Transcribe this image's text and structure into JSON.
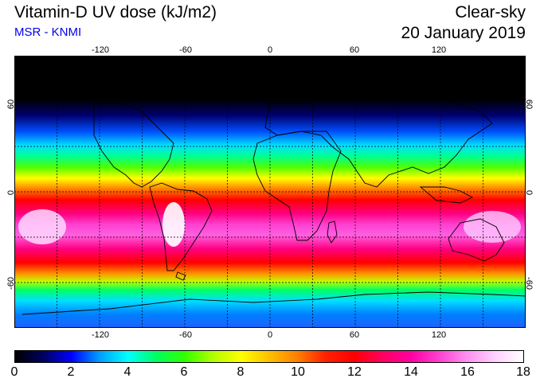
{
  "header": {
    "title": "Vitamin-D UV dose (kJ/m2)",
    "source": "MSR - KNMI",
    "condition": "Clear-sky",
    "date": "20 January 2019"
  },
  "map": {
    "lon_ticks": [
      "-120",
      "-60",
      "0",
      "60",
      "120"
    ],
    "lon_tick_values": [
      -120,
      -60,
      0,
      60,
      120
    ],
    "lat_ticks": [
      "60",
      "0",
      "-60"
    ],
    "lat_tick_values": [
      60,
      0,
      -60
    ],
    "lon_range": [
      -180,
      180
    ],
    "lat_range": [
      -90,
      90
    ]
  },
  "colorbar": {
    "labels": [
      "0",
      "2",
      "4",
      "6",
      "8",
      "10",
      "12",
      "14",
      "16",
      "18"
    ],
    "values": [
      0,
      2,
      4,
      6,
      8,
      10,
      12,
      14,
      16,
      18
    ],
    "colors": [
      "#000000",
      "#000060",
      "#0000ff",
      "#00a0ff",
      "#00ffff",
      "#00ff60",
      "#30ff00",
      "#b0ff00",
      "#ffff00",
      "#ffc000",
      "#ff8000",
      "#ff2000",
      "#ff0000",
      "#ff0060",
      "#ff00a0",
      "#ff40d0",
      "#ff90f0",
      "#ffd0ff",
      "#ffffff"
    ]
  }
}
